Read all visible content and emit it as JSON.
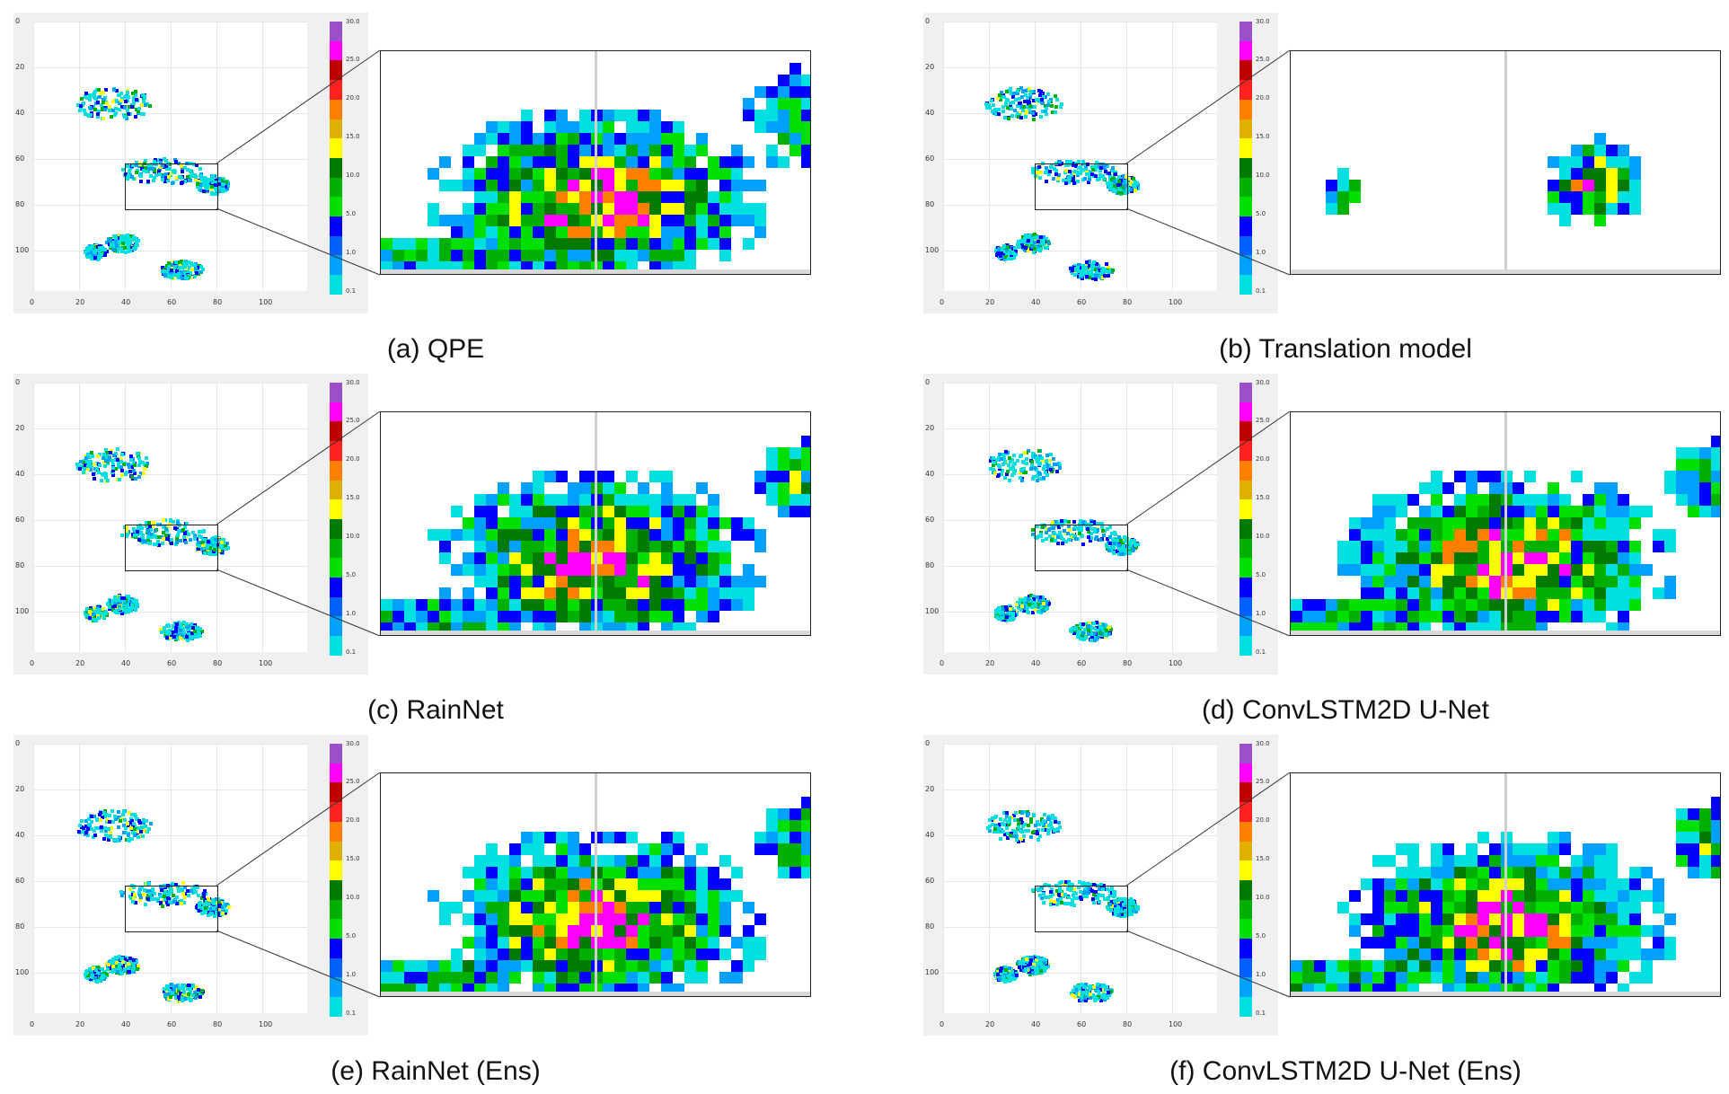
{
  "chart_data": {
    "type": "heatmap",
    "xticks": [
      "0",
      "20",
      "40",
      "60",
      "80",
      "100"
    ],
    "yticks": [
      "0",
      "20",
      "40",
      "60",
      "80",
      "100"
    ],
    "colorbar_ticks": [
      "30.0",
      "25.0",
      "20.0",
      "15.0",
      "10.0",
      "5.0",
      "1.0",
      "0.1"
    ],
    "colors": [
      "#9b4fc9",
      "#ff00ff",
      "#c00000",
      "#ff2020",
      "#ff8000",
      "#e0b000",
      "#ffff00",
      "#007a00",
      "#00b000",
      "#00e000",
      "#0000ff",
      "#0060ff",
      "#00a0ff",
      "#00e0e0"
    ],
    "panels": [
      {
        "caption": "(a) QPE"
      },
      {
        "caption": "(b) Translation model"
      },
      {
        "caption": "(c) RainNet"
      },
      {
        "caption": "(d) ConvLSTM2D U-Net"
      },
      {
        "caption": "(e) RainNet (Ens)"
      },
      {
        "caption": "(f) ConvLSTM2D U-Net (Ens)"
      }
    ]
  }
}
